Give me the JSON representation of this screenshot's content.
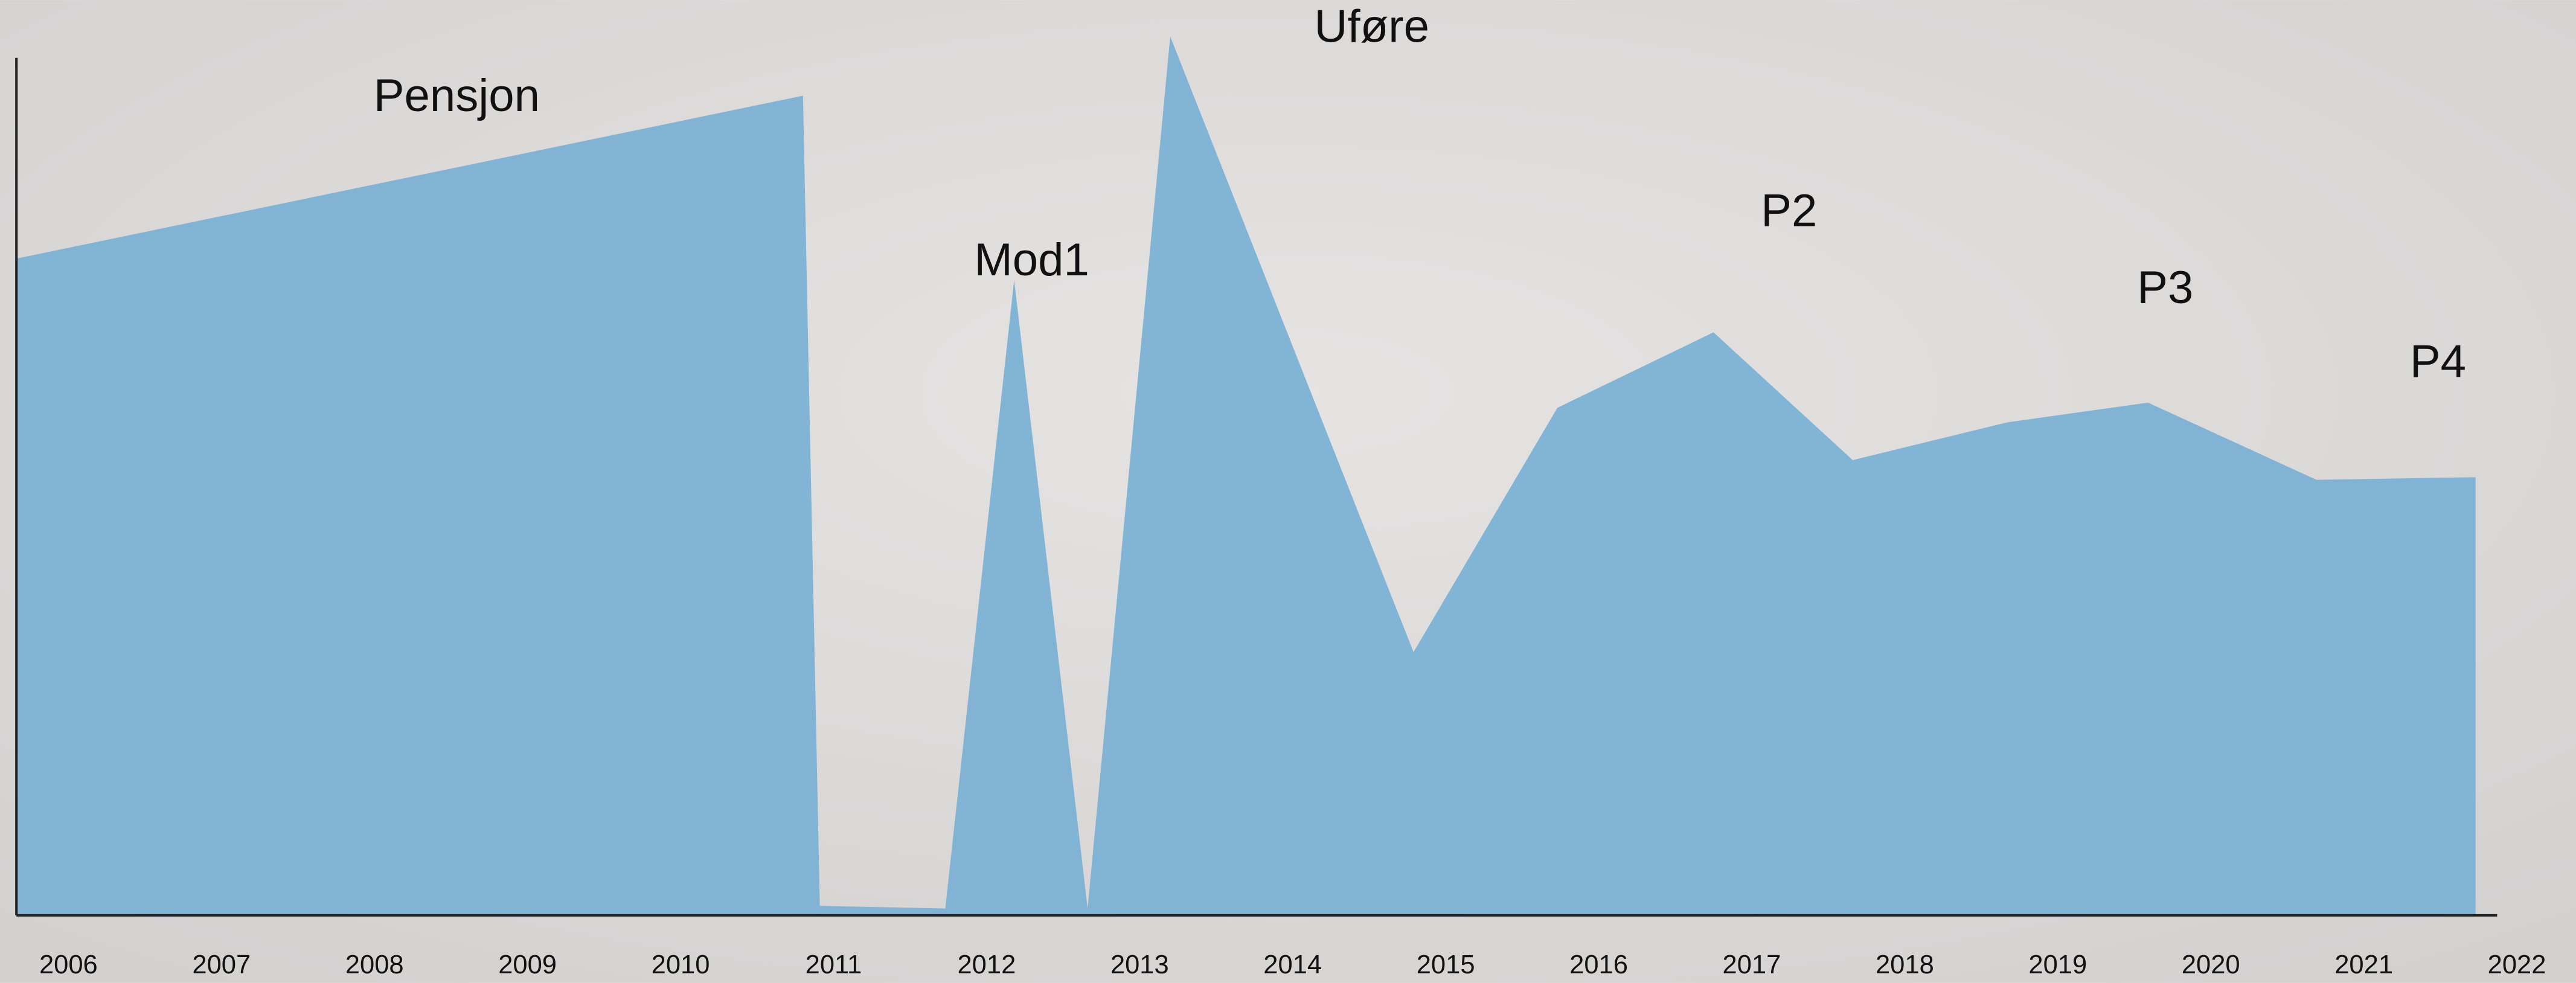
{
  "chart_data": {
    "type": "area",
    "x": [
      2005.66,
      2010.8,
      2010.91,
      2011.73,
      2012.18,
      2012.66,
      2013.2,
      2014.79,
      2015.73,
      2016.75,
      2017.66,
      2018.67,
      2019.59,
      2020.69,
      2021.73
    ],
    "values": [
      76.6,
      95.6,
      1.1,
      0.8,
      74.1,
      0.8,
      102.5,
      30.7,
      59.2,
      68.0,
      53.1,
      57.5,
      59.8,
      50.8,
      51.1
    ],
    "color": "#7ab0d4",
    "xlim": [
      2005.66,
      2022
    ],
    "ylim": [
      0,
      105
    ],
    "xticks": [
      2006,
      2007,
      2008,
      2009,
      2010,
      2011,
      2012,
      2013,
      2014,
      2015,
      2016,
      2017,
      2018,
      2019,
      2020,
      2021,
      2022
    ],
    "grid": false,
    "annotations": [
      "Pensjon",
      "Mod1",
      "Uføre",
      "P2",
      "P3",
      "P4"
    ]
  }
}
